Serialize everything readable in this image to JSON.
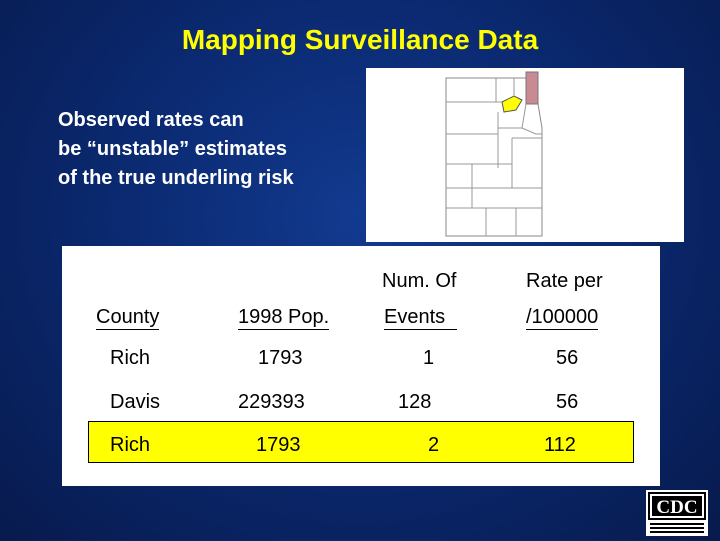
{
  "slide": {
    "title": "Mapping Surveillance Data",
    "note_lines": [
      "Observed rates can",
      "be “unstable” estimates",
      "of the true underling risk"
    ]
  },
  "table": {
    "headers": {
      "county": "County",
      "pop": "1998 Pop.",
      "events_line1": "Num. Of",
      "events_line2": "Events",
      "rate_line1": "Rate per",
      "rate_line2": "/100000"
    },
    "rows": [
      {
        "county": "Rich",
        "pop": "1793",
        "events": "1",
        "rate": "56"
      },
      {
        "county": "Davis",
        "pop": "229393",
        "events": "128",
        "rate": "56"
      },
      {
        "county": "Rich",
        "pop": "1793",
        "events": "2",
        "rate": "112"
      }
    ],
    "highlight_color": "#ffff00"
  },
  "map": {
    "highlight_colors": {
      "rich": "#c98a94",
      "davis": "#ffff00"
    }
  },
  "colors": {
    "background": "#0b2a72",
    "title": "#ffff00",
    "text": "#ffffff"
  },
  "logo": {
    "text": "CDC"
  }
}
